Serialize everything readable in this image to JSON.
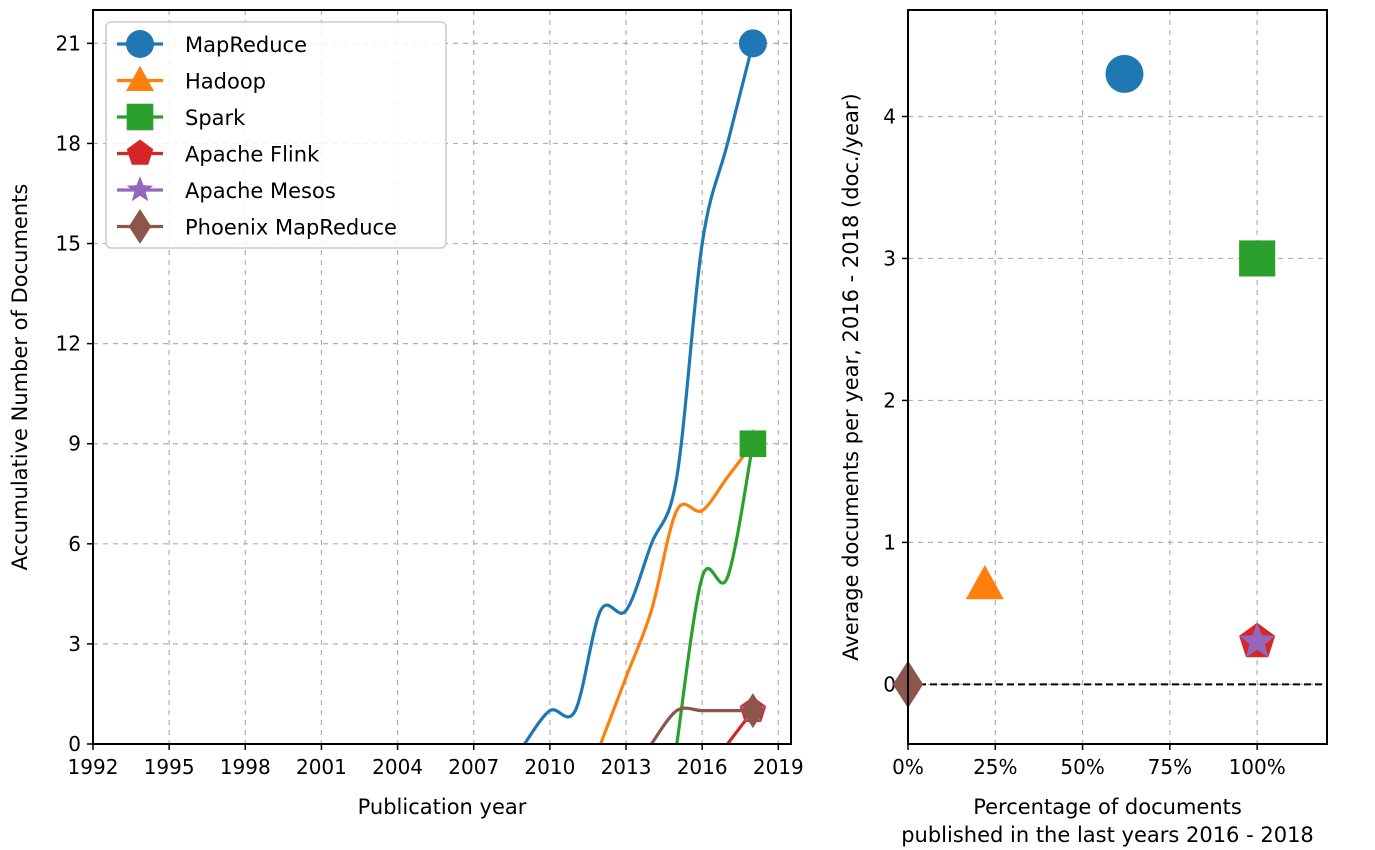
{
  "chart_data": [
    {
      "type": "line",
      "title": "",
      "xlabel": "Publication year",
      "ylabel": "Accumulative Number of Documents",
      "xlim": [
        1992,
        2019.5
      ],
      "ylim": [
        0,
        22
      ],
      "xticks": [
        1992,
        1995,
        1998,
        2001,
        2004,
        2007,
        2010,
        2013,
        2016,
        2019
      ],
      "yticks": [
        0,
        3,
        6,
        9,
        12,
        15,
        18,
        21
      ],
      "grid": true,
      "legend": "top-left",
      "series": [
        {
          "name": "MapReduce",
          "color": "#1f77b4",
          "marker": "circle",
          "x": [
            2009,
            2010,
            2011,
            2012,
            2013,
            2014,
            2015,
            2016,
            2017,
            2018
          ],
          "y": [
            0,
            1,
            1,
            4,
            4,
            6,
            8,
            15,
            18,
            21
          ]
        },
        {
          "name": "Hadoop",
          "color": "#ff7f0e",
          "marker": "triangle",
          "x": [
            2012,
            2013,
            2014,
            2015,
            2016,
            2017,
            2018
          ],
          "y": [
            0,
            2,
            4,
            7,
            7,
            8,
            9
          ]
        },
        {
          "name": "Spark",
          "color": "#2ca02c",
          "marker": "square",
          "x": [
            2015,
            2016,
            2017,
            2018
          ],
          "y": [
            0,
            5,
            5,
            9
          ]
        },
        {
          "name": "Apache Flink",
          "color": "#d62728",
          "marker": "pentagon",
          "x": [
            2017,
            2018
          ],
          "y": [
            0,
            1
          ]
        },
        {
          "name": "Apache Mesos",
          "color": "#9467bd",
          "marker": "star",
          "x": [
            2018
          ],
          "y": [
            1
          ]
        },
        {
          "name": "Phoenix MapReduce",
          "color": "#8c564b",
          "marker": "diamond",
          "x": [
            2014,
            2015,
            2016,
            2017,
            2018
          ],
          "y": [
            0,
            1,
            1,
            1,
            1
          ]
        }
      ]
    },
    {
      "type": "scatter",
      "title": "",
      "xlabel": "Percentage of documents",
      "xlabel2": "published in the last years 2016 - 2018",
      "ylabel": "Average documents per year, 2016 - 2018 (doc./year)",
      "xlim": [
        0,
        1.2
      ],
      "ylim": [
        -0.42,
        4.75
      ],
      "xticks": [
        0,
        0.25,
        0.5,
        0.75,
        1.0
      ],
      "xtick_labels": [
        "0%",
        "25%",
        "50%",
        "75%",
        "100%"
      ],
      "yticks": [
        0,
        1,
        2,
        3,
        4
      ],
      "grid": true,
      "points": [
        {
          "name": "MapReduce",
          "x": 0.62,
          "y": 4.3,
          "color": "#1f77b4",
          "marker": "circle"
        },
        {
          "name": "Hadoop",
          "x": 0.22,
          "y": 0.7,
          "color": "#ff7f0e",
          "marker": "triangle"
        },
        {
          "name": "Spark",
          "x": 1.0,
          "y": 3.0,
          "color": "#2ca02c",
          "marker": "square"
        },
        {
          "name": "Apache Flink",
          "x": 1.0,
          "y": 0.3,
          "color": "#d62728",
          "marker": "pentagon"
        },
        {
          "name": "Apache Mesos",
          "x": 1.0,
          "y": 0.3,
          "color": "#9467bd",
          "marker": "star"
        },
        {
          "name": "Phoenix MapReduce",
          "x": 0.0,
          "y": 0.0,
          "color": "#8c564b",
          "marker": "diamond"
        }
      ]
    }
  ]
}
